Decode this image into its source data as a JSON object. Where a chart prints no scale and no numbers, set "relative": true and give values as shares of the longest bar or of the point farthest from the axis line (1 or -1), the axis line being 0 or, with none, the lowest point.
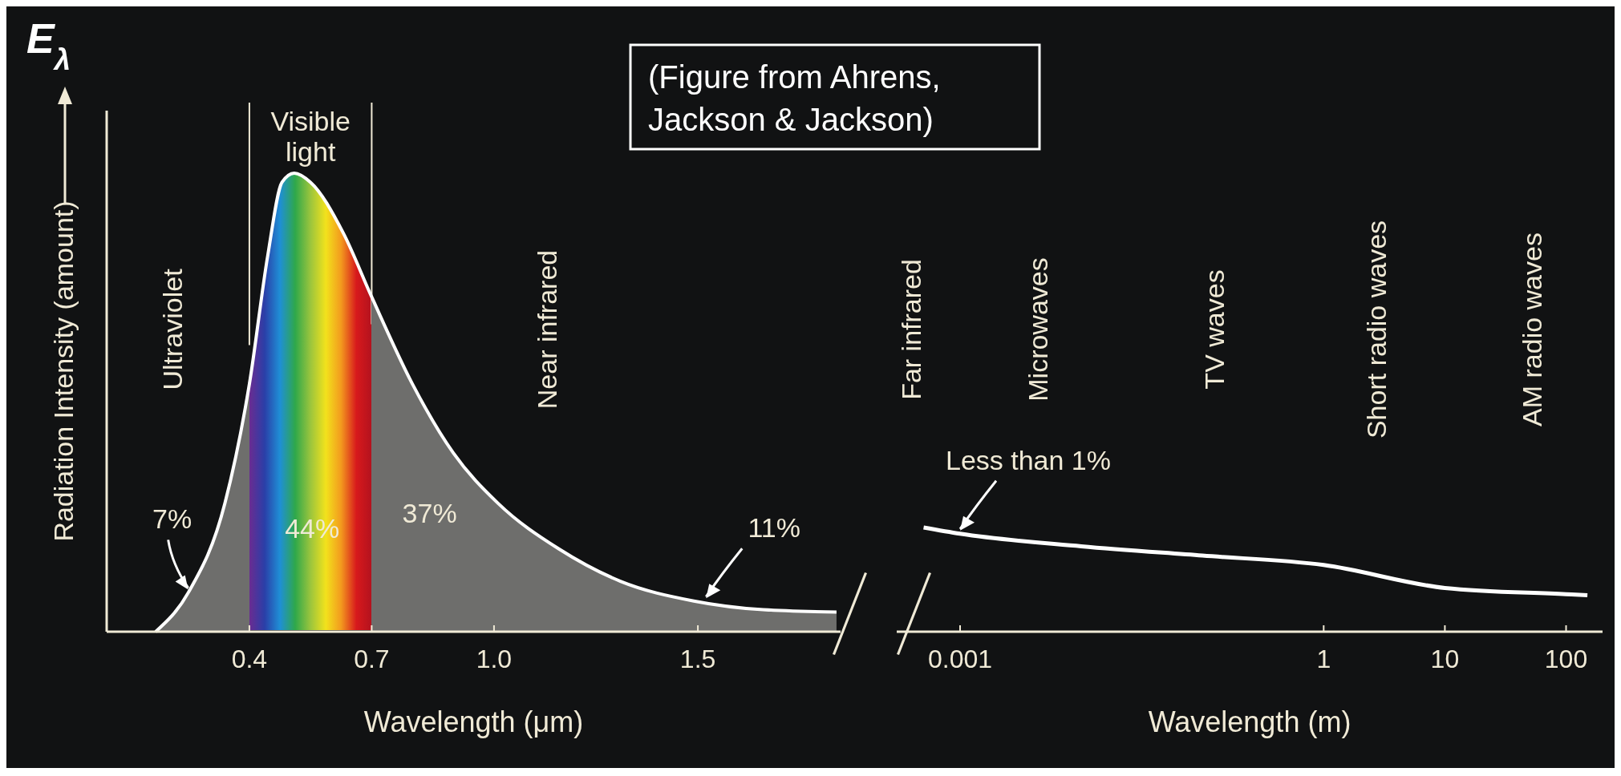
{
  "chart_data": [
    {
      "type": "area",
      "relative": true,
      "xlabel": "Wavelength (μm)",
      "ylabel": "Radiation Intensity (amount)",
      "xlim": [
        0.05,
        1.85
      ],
      "xticks": [
        0.4,
        0.7,
        {
          "value": 1,
          "label": "1.0"
        },
        1.5
      ],
      "x": [
        0.17,
        0.25,
        0.34,
        0.4,
        0.445,
        0.48,
        0.51,
        0.55,
        0.63,
        0.7,
        0.8,
        0.9,
        1.01,
        1.16,
        1.31,
        1.49,
        1.66,
        1.84
      ],
      "series": [
        {
          "color": "#ffffff",
          "values": [
            0,
            0.085,
            0.28,
            0.54,
            0.82,
            0.98,
            1,
            0.98,
            0.87,
            0.73,
            0.54,
            0.39,
            0.28,
            0.18,
            0.11,
            0.067,
            0.048,
            0.043
          ]
        }
      ],
      "bands": [
        {
          "axis": "x",
          "from": 0.4,
          "to": 0.7,
          "label": "Visible light"
        }
      ],
      "annotations": [
        "E$_{λ}$",
        "(Figure from Ahrens, Jackson & Jackson)",
        "Ultraviolet",
        "Near infrared",
        "44%",
        "37%",
        {
          "text": "7%",
          "x": 0.25,
          "y": 0.085
        },
        {
          "text": "11%",
          "x": 1.52,
          "y": 0.066
        }
      ]
    },
    {
      "type": "line",
      "relative": true,
      "log": "x",
      "xlabel": "Wavelength (m)",
      "xlim": [
        0.0003,
        200
      ],
      "xticks": [
        {
          "value": 0.001,
          "label": "0.001"
        },
        1,
        10,
        100
      ],
      "x": [
        0.0005,
        0.001,
        0.01,
        0.1,
        1,
        10,
        100,
        150
      ],
      "series": [
        {
          "color": "#ffffff",
          "values": [
            1,
            0.94,
            0.82,
            0.73,
            0.64,
            0.42,
            0.36,
            0.35
          ]
        }
      ],
      "annotations": [
        "Far infrared",
        "Microwaves",
        "TV waves",
        "Short radio waves",
        "AM radio waves",
        {
          "text": "Less than 1%",
          "x": 0.001,
          "y": 0.94
        }
      ]
    }
  ]
}
